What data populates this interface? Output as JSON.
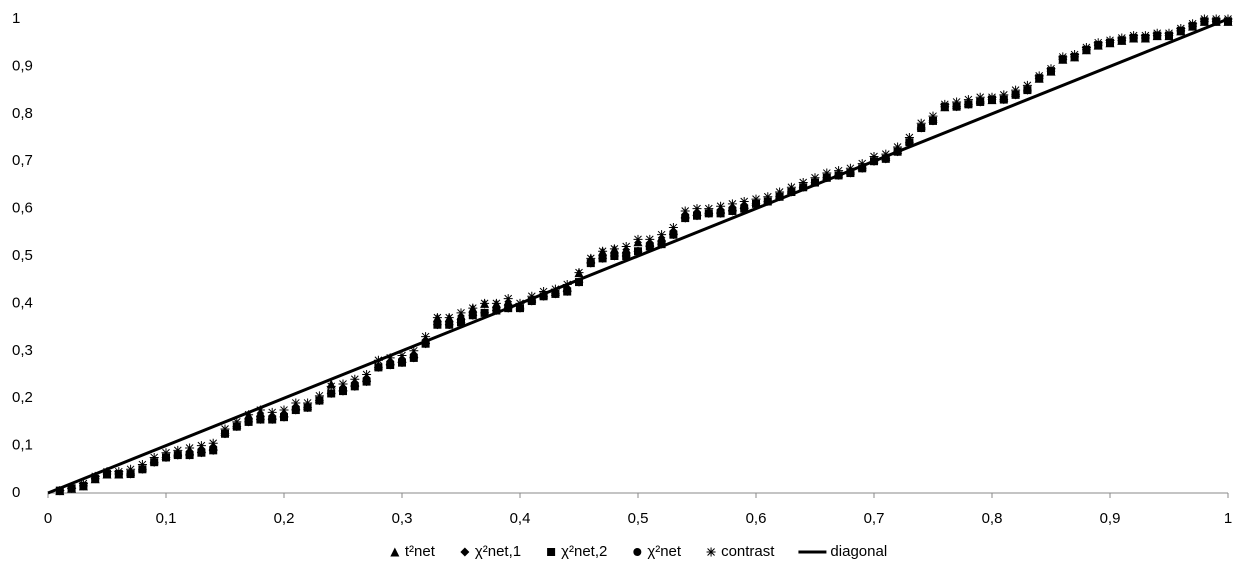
{
  "chart_data": {
    "type": "scatter",
    "x": [
      0.01,
      0.02,
      0.03,
      0.04,
      0.05,
      0.06,
      0.07,
      0.08,
      0.09,
      0.1,
      0.11,
      0.12,
      0.13,
      0.14,
      0.15,
      0.16,
      0.17,
      0.18,
      0.19,
      0.2,
      0.21,
      0.22,
      0.23,
      0.24,
      0.25,
      0.26,
      0.27,
      0.28,
      0.29,
      0.3,
      0.31,
      0.32,
      0.33,
      0.34,
      0.35,
      0.36,
      0.37,
      0.38,
      0.39,
      0.4,
      0.41,
      0.42,
      0.43,
      0.44,
      0.45,
      0.46,
      0.47,
      0.48,
      0.49,
      0.5,
      0.51,
      0.52,
      0.53,
      0.54,
      0.55,
      0.56,
      0.57,
      0.58,
      0.59,
      0.6,
      0.61,
      0.62,
      0.63,
      0.64,
      0.65,
      0.66,
      0.67,
      0.68,
      0.69,
      0.7,
      0.71,
      0.72,
      0.73,
      0.74,
      0.75,
      0.76,
      0.77,
      0.78,
      0.79,
      0.8,
      0.81,
      0.82,
      0.83,
      0.84,
      0.85,
      0.86,
      0.87,
      0.88,
      0.89,
      0.9,
      0.91,
      0.92,
      0.93,
      0.94,
      0.95,
      0.96,
      0.97,
      0.98,
      0.99,
      1
    ],
    "series": [
      {
        "name": "t²net",
        "color": "#000000",
        "marker": "triangle",
        "values": [
          0.005,
          0.01,
          0.015,
          0.03,
          0.04,
          0.04,
          0.045,
          0.055,
          0.07,
          0.08,
          0.085,
          0.09,
          0.095,
          0.1,
          0.13,
          0.145,
          0.165,
          0.17,
          0.165,
          0.17,
          0.185,
          0.185,
          0.2,
          0.23,
          0.225,
          0.235,
          0.245,
          0.27,
          0.28,
          0.285,
          0.295,
          0.325,
          0.37,
          0.37,
          0.375,
          0.39,
          0.4,
          0.4,
          0.405,
          0.395,
          0.41,
          0.42,
          0.425,
          0.435,
          0.465,
          0.495,
          0.51,
          0.515,
          0.515,
          0.53,
          0.53,
          0.54,
          0.555,
          0.59,
          0.595,
          0.595,
          0.6,
          0.605,
          0.61,
          0.615,
          0.62,
          0.63,
          0.64,
          0.65,
          0.66,
          0.67,
          0.675,
          0.68,
          0.69,
          0.705,
          0.71,
          0.725,
          0.745,
          0.775,
          0.79,
          0.815,
          0.82,
          0.825,
          0.83,
          0.83,
          0.835,
          0.845,
          0.855,
          0.875,
          0.89,
          0.915,
          0.92,
          0.935,
          0.945,
          0.95,
          0.955,
          0.96,
          0.96,
          0.965,
          0.965,
          0.975,
          0.985,
          0.995,
          0.995,
          0.995
        ]
      },
      {
        "name": "χ²net,1",
        "color": "#000000",
        "marker": "diamond",
        "values": [
          0.005,
          0.01,
          0.015,
          0.03,
          0.04,
          0.04,
          0.04,
          0.05,
          0.065,
          0.075,
          0.08,
          0.08,
          0.085,
          0.09,
          0.125,
          0.14,
          0.15,
          0.155,
          0.155,
          0.16,
          0.175,
          0.18,
          0.195,
          0.21,
          0.215,
          0.225,
          0.235,
          0.265,
          0.27,
          0.275,
          0.285,
          0.315,
          0.355,
          0.355,
          0.36,
          0.375,
          0.38,
          0.385,
          0.39,
          0.39,
          0.405,
          0.415,
          0.42,
          0.425,
          0.445,
          0.485,
          0.495,
          0.5,
          0.5,
          0.51,
          0.52,
          0.525,
          0.545,
          0.58,
          0.585,
          0.59,
          0.59,
          0.595,
          0.6,
          0.61,
          0.615,
          0.625,
          0.635,
          0.645,
          0.655,
          0.665,
          0.67,
          0.675,
          0.685,
          0.7,
          0.705,
          0.72,
          0.74,
          0.77,
          0.785,
          0.815,
          0.815,
          0.82,
          0.825,
          0.83,
          0.83,
          0.84,
          0.85,
          0.875,
          0.89,
          0.915,
          0.92,
          0.935,
          0.945,
          0.95,
          0.955,
          0.96,
          0.96,
          0.965,
          0.965,
          0.975,
          0.985,
          0.995,
          0.995,
          0.995
        ]
      },
      {
        "name": "χ²net,2",
        "color": "#000000",
        "marker": "square",
        "values": [
          0.005,
          0.01,
          0.015,
          0.03,
          0.04,
          0.04,
          0.04,
          0.05,
          0.065,
          0.075,
          0.08,
          0.08,
          0.085,
          0.09,
          0.125,
          0.14,
          0.15,
          0.155,
          0.155,
          0.16,
          0.175,
          0.18,
          0.195,
          0.21,
          0.215,
          0.225,
          0.235,
          0.265,
          0.27,
          0.275,
          0.285,
          0.315,
          0.355,
          0.355,
          0.36,
          0.375,
          0.38,
          0.385,
          0.39,
          0.39,
          0.405,
          0.415,
          0.42,
          0.425,
          0.445,
          0.485,
          0.495,
          0.5,
          0.5,
          0.51,
          0.52,
          0.525,
          0.545,
          0.58,
          0.585,
          0.59,
          0.59,
          0.595,
          0.6,
          0.61,
          0.615,
          0.625,
          0.635,
          0.645,
          0.655,
          0.665,
          0.67,
          0.675,
          0.685,
          0.7,
          0.705,
          0.72,
          0.74,
          0.77,
          0.785,
          0.815,
          0.815,
          0.82,
          0.825,
          0.83,
          0.83,
          0.84,
          0.85,
          0.875,
          0.89,
          0.915,
          0.92,
          0.935,
          0.945,
          0.95,
          0.955,
          0.96,
          0.96,
          0.965,
          0.965,
          0.975,
          0.985,
          0.995,
          0.995,
          0.995
        ]
      },
      {
        "name": "χ²net",
        "color": "#000000",
        "marker": "circle",
        "values": [
          0.005,
          0.01,
          0.015,
          0.03,
          0.04,
          0.04,
          0.04,
          0.05,
          0.065,
          0.075,
          0.08,
          0.08,
          0.085,
          0.09,
          0.125,
          0.14,
          0.15,
          0.155,
          0.155,
          0.16,
          0.175,
          0.18,
          0.195,
          0.21,
          0.215,
          0.225,
          0.235,
          0.265,
          0.27,
          0.275,
          0.285,
          0.315,
          0.355,
          0.355,
          0.36,
          0.375,
          0.38,
          0.385,
          0.39,
          0.39,
          0.405,
          0.415,
          0.42,
          0.425,
          0.445,
          0.485,
          0.495,
          0.5,
          0.5,
          0.51,
          0.52,
          0.525,
          0.545,
          0.58,
          0.585,
          0.59,
          0.59,
          0.595,
          0.6,
          0.61,
          0.615,
          0.625,
          0.635,
          0.645,
          0.655,
          0.665,
          0.67,
          0.675,
          0.685,
          0.7,
          0.705,
          0.72,
          0.74,
          0.77,
          0.785,
          0.815,
          0.815,
          0.82,
          0.825,
          0.83,
          0.83,
          0.84,
          0.85,
          0.875,
          0.89,
          0.915,
          0.92,
          0.935,
          0.945,
          0.95,
          0.955,
          0.96,
          0.96,
          0.965,
          0.965,
          0.975,
          0.985,
          0.995,
          0.995,
          0.995
        ]
      },
      {
        "name": "contrast",
        "color": "#000000",
        "marker": "asterisk",
        "values": [
          0.005,
          0.01,
          0.02,
          0.035,
          0.045,
          0.045,
          0.05,
          0.06,
          0.075,
          0.085,
          0.09,
          0.095,
          0.1,
          0.105,
          0.135,
          0.15,
          0.165,
          0.175,
          0.17,
          0.175,
          0.19,
          0.19,
          0.205,
          0.225,
          0.23,
          0.24,
          0.25,
          0.28,
          0.285,
          0.29,
          0.3,
          0.33,
          0.37,
          0.37,
          0.38,
          0.39,
          0.4,
          0.4,
          0.41,
          0.4,
          0.415,
          0.425,
          0.43,
          0.44,
          0.465,
          0.495,
          0.51,
          0.515,
          0.52,
          0.535,
          0.535,
          0.545,
          0.56,
          0.595,
          0.6,
          0.6,
          0.605,
          0.61,
          0.615,
          0.62,
          0.625,
          0.635,
          0.645,
          0.655,
          0.665,
          0.675,
          0.68,
          0.685,
          0.695,
          0.71,
          0.715,
          0.73,
          0.75,
          0.78,
          0.795,
          0.82,
          0.825,
          0.83,
          0.835,
          0.835,
          0.84,
          0.85,
          0.86,
          0.88,
          0.895,
          0.92,
          0.925,
          0.94,
          0.95,
          0.955,
          0.96,
          0.965,
          0.965,
          0.97,
          0.97,
          0.98,
          0.99,
          1,
          1,
          1
        ]
      },
      {
        "name": "diagonal",
        "color": "#000000",
        "type": "line",
        "x": [
          0,
          1
        ],
        "values": [
          0,
          1
        ]
      }
    ],
    "xlim": [
      0,
      1
    ],
    "ylim": [
      0,
      1
    ],
    "xticks": [
      0,
      {
        "value": 0.1,
        "label": "0,1"
      },
      {
        "value": 0.2,
        "label": "0,2"
      },
      {
        "value": 0.3,
        "label": "0,3"
      },
      {
        "value": 0.4,
        "label": "0,4"
      },
      {
        "value": 0.5,
        "label": "0,5"
      },
      {
        "value": 0.6,
        "label": "0,6"
      },
      {
        "value": 0.7,
        "label": "0,7"
      },
      {
        "value": 0.8,
        "label": "0,8"
      },
      {
        "value": 0.9,
        "label": "0,9"
      },
      1
    ],
    "yticks": [
      0,
      {
        "value": 0.1,
        "label": "0,1"
      },
      {
        "value": 0.2,
        "label": "0,2"
      },
      {
        "value": 0.3,
        "label": "0,3"
      },
      {
        "value": 0.4,
        "label": "0,4"
      },
      {
        "value": 0.5,
        "label": "0,5"
      },
      {
        "value": 0.6,
        "label": "0,6"
      },
      {
        "value": 0.7,
        "label": "0,7"
      },
      {
        "value": 0.8,
        "label": "0,8"
      },
      {
        "value": 0.9,
        "label": "0,9"
      },
      1
    ],
    "grid": false,
    "legend": "bottom"
  }
}
